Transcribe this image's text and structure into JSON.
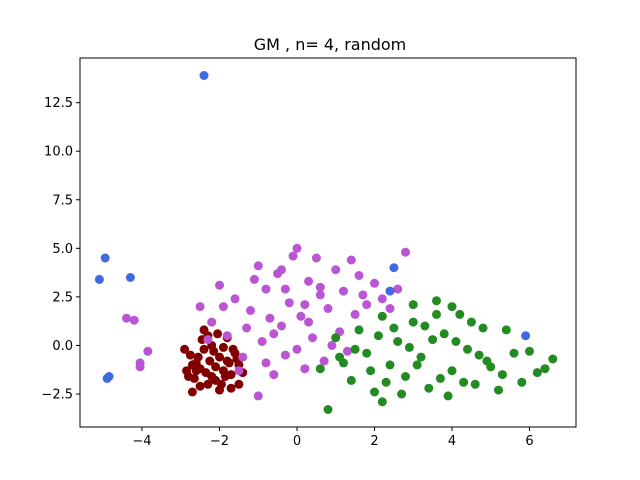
{
  "chart_data": {
    "type": "scatter",
    "title": "GM , n= 4, random",
    "xlabel": "",
    "ylabel": "",
    "xlim": [
      -5.6,
      7.2
    ],
    "ylim": [
      -4.2,
      14.8
    ],
    "xticks": [
      -4,
      -2,
      0,
      2,
      4,
      6
    ],
    "xtick_labels": [
      "−4",
      "−2",
      "0",
      "2",
      "4",
      "6"
    ],
    "yticks": [
      -2.5,
      0.0,
      2.5,
      5.0,
      7.5,
      10.0,
      12.5
    ],
    "ytick_labels": [
      "−2.5",
      "0.0",
      "2.5",
      "5.0",
      "7.5",
      "10.0",
      "12.5"
    ],
    "grid": false,
    "series": [
      {
        "color": "#800000",
        "values": [
          [
            -2.9,
            -0.2
          ],
          [
            -2.8,
            -1.6
          ],
          [
            -2.7,
            -2.4
          ],
          [
            -2.6,
            -0.9
          ],
          [
            -2.5,
            -1.2
          ],
          [
            -2.4,
            0.8
          ],
          [
            -2.3,
            -2.0
          ],
          [
            -2.2,
            0.0
          ],
          [
            -2.1,
            -1.8
          ],
          [
            -2.0,
            -0.6
          ],
          [
            -1.9,
            -1.3
          ],
          [
            -1.8,
            0.4
          ],
          [
            -1.7,
            -2.2
          ],
          [
            -1.6,
            -0.4
          ],
          [
            -1.5,
            -1.0
          ],
          [
            -1.4,
            -1.4
          ],
          [
            -2.55,
            -0.6
          ],
          [
            -2.35,
            -1.4
          ],
          [
            -2.15,
            -0.3
          ],
          [
            -1.95,
            -2.0
          ],
          [
            -1.75,
            -0.9
          ],
          [
            -2.65,
            -1.7
          ],
          [
            -2.45,
            0.3
          ],
          [
            -2.25,
            -0.8
          ],
          [
            -2.05,
            0.6
          ],
          [
            -1.85,
            -1.6
          ],
          [
            -1.65,
            -0.2
          ],
          [
            -2.75,
            -0.5
          ],
          [
            -2.5,
            -2.1
          ],
          [
            -2.3,
            0.5
          ],
          [
            -2.1,
            -1.1
          ],
          [
            -1.9,
            -0.1
          ],
          [
            -1.7,
            -1.5
          ],
          [
            -1.55,
            -0.7
          ],
          [
            -2.6,
            -1.3
          ],
          [
            -2.4,
            -0.2
          ],
          [
            -2.2,
            -1.6
          ],
          [
            -2.0,
            -2.3
          ],
          [
            -1.8,
            -0.8
          ],
          [
            -2.7,
            -1.0
          ],
          [
            -2.85,
            -1.3
          ],
          [
            -1.5,
            -2.0
          ]
        ]
      },
      {
        "color": "#ba55d3",
        "values": [
          [
            -4.4,
            1.4
          ],
          [
            -4.2,
            1.3
          ],
          [
            -4.05,
            -0.9
          ],
          [
            -4.05,
            -1.1
          ],
          [
            -3.85,
            -0.3
          ],
          [
            -2.5,
            2.0
          ],
          [
            -2.2,
            1.2
          ],
          [
            -2.0,
            3.1
          ],
          [
            -1.8,
            0.5
          ],
          [
            -1.6,
            2.4
          ],
          [
            -1.4,
            -0.6
          ],
          [
            -1.2,
            1.8
          ],
          [
            -1.0,
            4.1
          ],
          [
            -0.9,
            0.2
          ],
          [
            -0.8,
            2.9
          ],
          [
            -0.6,
            -1.5
          ],
          [
            -0.5,
            3.7
          ],
          [
            -0.4,
            1.0
          ],
          [
            -0.3,
            -0.5
          ],
          [
            -0.2,
            2.2
          ],
          [
            -0.1,
            4.6
          ],
          [
            0.0,
            5.0
          ],
          [
            0.1,
            1.5
          ],
          [
            0.2,
            -1.2
          ],
          [
            0.3,
            3.3
          ],
          [
            0.4,
            0.4
          ],
          [
            0.5,
            4.5
          ],
          [
            0.6,
            2.6
          ],
          [
            0.7,
            -0.8
          ],
          [
            0.8,
            1.9
          ],
          [
            1.0,
            3.9
          ],
          [
            1.1,
            0.7
          ],
          [
            1.2,
            2.8
          ],
          [
            1.4,
            4.4
          ],
          [
            1.5,
            1.6
          ],
          [
            1.6,
            3.6
          ],
          [
            1.8,
            2.1
          ],
          [
            2.0,
            3.2
          ],
          [
            2.2,
            2.4
          ],
          [
            2.4,
            1.9
          ],
          [
            2.6,
            2.9
          ],
          [
            2.8,
            4.8
          ],
          [
            -1.5,
            -1.3
          ],
          [
            -1.0,
            -2.6
          ],
          [
            -0.7,
            1.4
          ],
          [
            -0.3,
            2.9
          ],
          [
            0.0,
            -0.2
          ],
          [
            0.3,
            1.2
          ],
          [
            -1.3,
            0.9
          ],
          [
            -0.8,
            -0.9
          ],
          [
            0.9,
            0.0
          ],
          [
            1.3,
            -0.3
          ],
          [
            -1.9,
            2.0
          ],
          [
            -2.3,
            0.3
          ],
          [
            -1.1,
            3.4
          ],
          [
            -0.4,
            3.9
          ],
          [
            0.6,
            3.0
          ],
          [
            1.7,
            2.6
          ],
          [
            0.2,
            2.1
          ],
          [
            -0.6,
            0.6
          ]
        ]
      },
      {
        "color": "#228b22",
        "values": [
          [
            0.6,
            -1.2
          ],
          [
            0.8,
            -3.3
          ],
          [
            1.0,
            0.4
          ],
          [
            1.2,
            -0.9
          ],
          [
            1.4,
            -1.8
          ],
          [
            1.6,
            0.8
          ],
          [
            1.8,
            -0.4
          ],
          [
            2.0,
            -2.4
          ],
          [
            2.2,
            1.5
          ],
          [
            2.2,
            -2.9
          ],
          [
            2.4,
            -1.0
          ],
          [
            2.6,
            0.2
          ],
          [
            2.8,
            -1.6
          ],
          [
            3.0,
            1.2
          ],
          [
            3.2,
            -0.6
          ],
          [
            3.4,
            -2.2
          ],
          [
            3.6,
            2.3
          ],
          [
            3.8,
            0.6
          ],
          [
            4.0,
            -1.3
          ],
          [
            4.2,
            1.6
          ],
          [
            4.4,
            -0.2
          ],
          [
            4.6,
            -2.0
          ],
          [
            4.8,
            0.9
          ],
          [
            5.0,
            -1.1
          ],
          [
            5.2,
            -2.3
          ],
          [
            5.4,
            0.8
          ],
          [
            5.6,
            -0.4
          ],
          [
            5.8,
            -1.9
          ],
          [
            6.0,
            -0.3
          ],
          [
            6.2,
            -1.4
          ],
          [
            6.4,
            -1.2
          ],
          [
            6.6,
            -0.7
          ],
          [
            3.0,
            2.1
          ],
          [
            3.3,
            1.0
          ],
          [
            3.7,
            -1.7
          ],
          [
            4.1,
            0.2
          ],
          [
            2.5,
            0.9
          ],
          [
            2.9,
            -0.1
          ],
          [
            3.5,
            0.3
          ],
          [
            4.5,
            1.2
          ],
          [
            4.9,
            -0.8
          ],
          [
            5.3,
            -1.5
          ],
          [
            1.5,
            -0.2
          ],
          [
            2.1,
            0.5
          ],
          [
            2.7,
            -2.5
          ],
          [
            3.9,
            -2.6
          ],
          [
            4.3,
            -1.9
          ],
          [
            1.9,
            -1.3
          ],
          [
            3.1,
            -1.0
          ],
          [
            4.7,
            -0.5
          ],
          [
            1.1,
            -0.6
          ],
          [
            2.3,
            -1.9
          ],
          [
            3.6,
            1.6
          ],
          [
            4.0,
            2.0
          ]
        ]
      },
      {
        "color": "#4169e1",
        "values": [
          [
            -2.4,
            13.9
          ],
          [
            -4.95,
            4.5
          ],
          [
            -4.3,
            3.5
          ],
          [
            -5.1,
            3.4
          ],
          [
            -4.9,
            -1.7
          ],
          [
            -4.85,
            -1.6
          ],
          [
            2.5,
            4.0
          ],
          [
            2.4,
            2.8
          ],
          [
            5.9,
            0.5
          ]
        ]
      }
    ]
  }
}
